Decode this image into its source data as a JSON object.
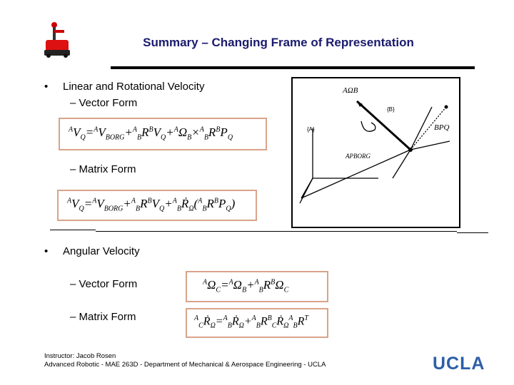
{
  "title": "Summary – Changing Frame of Representation",
  "bullets": {
    "b1": "Linear and Rotational Velocity",
    "b1_vector": "– Vector Form",
    "b1_matrix": "– Matrix Form",
    "b2": "Angular Velocity",
    "b2_vector": "– Vector Form",
    "b2_matrix": "– Matrix Form"
  },
  "bullet_symbol": "•",
  "equations": {
    "lin_vector": "AVQ = AVBORG + ABR BVQ + AΩB × ABR BPQ",
    "lin_matrix": "AVQ = AVBORG + ABR BVQ + ABṘ (ABR BPQ)",
    "ang_vector": "AΩC = AΩB + ABR BΩC",
    "ang_matrix": "ACṘΩ = ABṘΩ + ABR BCṘΩ ABRT"
  },
  "diagram_labels": {
    "omega": "AΩB",
    "frame_b": "{B}",
    "frame_a": "{A}",
    "p_b": "BPQ",
    "borg": "APBORG"
  },
  "footer": {
    "line1": "Instructor: Jacob Rosen",
    "line2": "Advanced Robotic - MAE 263D - Department of Mechanical & Aerospace Engineering - UCLA"
  },
  "logo": "UCLA",
  "colors": {
    "title": "#1a1a6e",
    "box_border": "#d9a38a",
    "ucla": "#2c5fa8"
  }
}
